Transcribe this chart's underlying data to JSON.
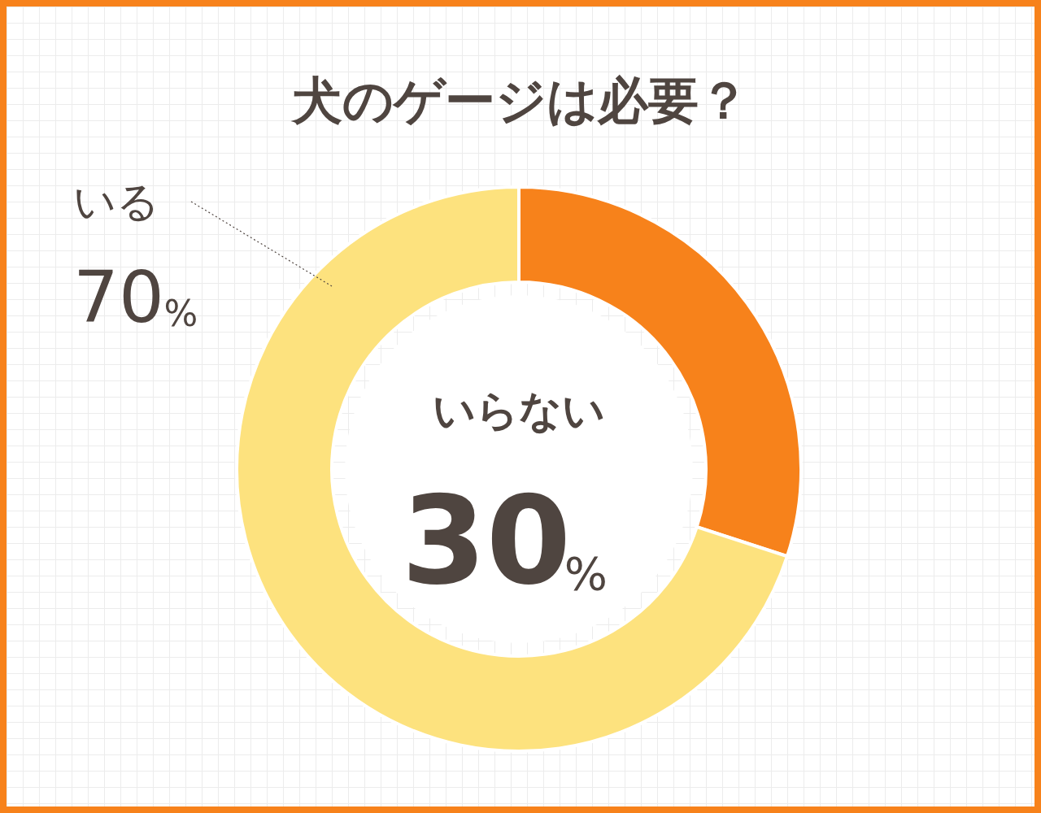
{
  "chart_data": {
    "type": "donut",
    "title": "犬のゲージは必要？",
    "categories": [
      "いらない",
      "いる"
    ],
    "values": [
      30,
      70
    ],
    "colors": [
      "#f7821b",
      "#fde27e"
    ],
    "value_labels": [
      "30%",
      "70%"
    ],
    "legend": false
  }
}
